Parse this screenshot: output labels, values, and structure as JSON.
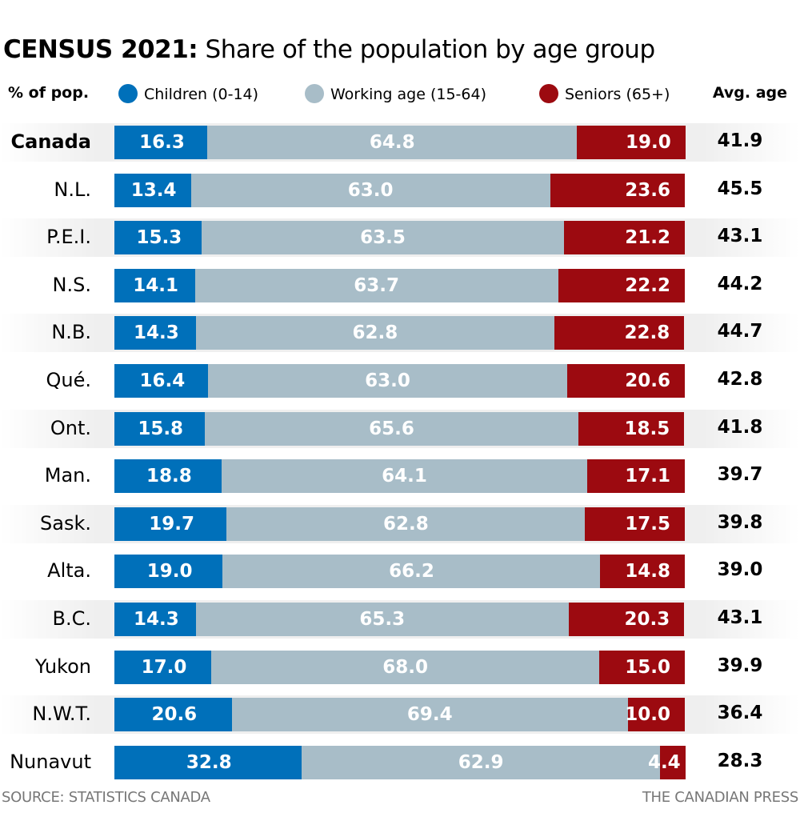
{
  "header": {
    "title_bold": "CENSUS 2021:",
    "title_rest": " Share of the population by age group"
  },
  "legend": {
    "unit_label": "% of pop.",
    "avg_label": "Avg. age",
    "items": [
      {
        "name": "Children (0-14)",
        "color": "#0070ba"
      },
      {
        "name": "Working age (15-64)",
        "color": "#a8bdc8"
      },
      {
        "name": "Seniors (65+)",
        "color": "#9c0a10"
      }
    ]
  },
  "footer": {
    "source": "SOURCE: STATISTICS CANADA",
    "credit": "THE CANADIAN PRESS"
  },
  "chart_data": {
    "type": "bar",
    "orientation": "horizontal",
    "stacked": true,
    "title": "CENSUS 2021: Share of the population by age group",
    "xlabel": "% of pop.",
    "ylabel": "",
    "xlim": [
      0,
      100
    ],
    "legend_position": "top",
    "grid": false,
    "categories": [
      "Canada",
      "N.L.",
      "P.E.I.",
      "N.S.",
      "N.B.",
      "Qué.",
      "Ont.",
      "Man.",
      "Sask.",
      "Alta.",
      "B.C.",
      "Yukon",
      "N.W.T.",
      "Nunavut"
    ],
    "series": [
      {
        "name": "Children (0-14)",
        "color": "#0070ba",
        "values": [
          16.3,
          13.4,
          15.3,
          14.1,
          14.3,
          16.4,
          15.8,
          18.8,
          19.7,
          19.0,
          14.3,
          17.0,
          20.6,
          32.8
        ]
      },
      {
        "name": "Working age (15-64)",
        "color": "#a8bdc8",
        "values": [
          64.8,
          63.0,
          63.5,
          63.7,
          62.8,
          63.0,
          65.6,
          64.1,
          62.8,
          66.2,
          65.3,
          68.0,
          69.4,
          62.9
        ]
      },
      {
        "name": "Seniors (65+)",
        "color": "#9c0a10",
        "values": [
          19.0,
          23.6,
          21.2,
          22.2,
          22.8,
          20.6,
          18.5,
          17.1,
          17.5,
          14.8,
          20.3,
          15.0,
          10.0,
          4.4
        ]
      }
    ],
    "avg_age": {
      "label": "Avg. age",
      "values": [
        41.9,
        45.5,
        43.1,
        44.2,
        44.7,
        42.8,
        41.8,
        39.7,
        39.8,
        39.0,
        43.1,
        39.9,
        36.4,
        28.3
      ]
    },
    "value_labels": [
      [
        "16.3",
        "64.8",
        "19.0"
      ],
      [
        "13.4",
        "63.0",
        "23.6"
      ],
      [
        "15.3",
        "63.5",
        "21.2"
      ],
      [
        "14.1",
        "63.7",
        "22.2"
      ],
      [
        "14.3",
        "62.8",
        "22.8"
      ],
      [
        "16.4",
        "63.0",
        "20.6"
      ],
      [
        "15.8",
        "65.6",
        "18.5"
      ],
      [
        "18.8",
        "64.1",
        "17.1"
      ],
      [
        "19.7",
        "62.8",
        "17.5"
      ],
      [
        "19.0",
        "66.2",
        "14.8"
      ],
      [
        "14.3",
        "65.3",
        "20.3"
      ],
      [
        "17.0",
        "68.0",
        "15.0"
      ],
      [
        "20.6",
        "69.4",
        "10.0"
      ],
      [
        "32.8",
        "62.9",
        "4.4"
      ]
    ],
    "avg_age_labels": [
      "41.9",
      "45.5",
      "43.1",
      "44.2",
      "44.7",
      "42.8",
      "41.8",
      "39.7",
      "39.8",
      "39.0",
      "43.1",
      "39.9",
      "36.4",
      "28.3"
    ],
    "highlighted_category": "Canada"
  }
}
